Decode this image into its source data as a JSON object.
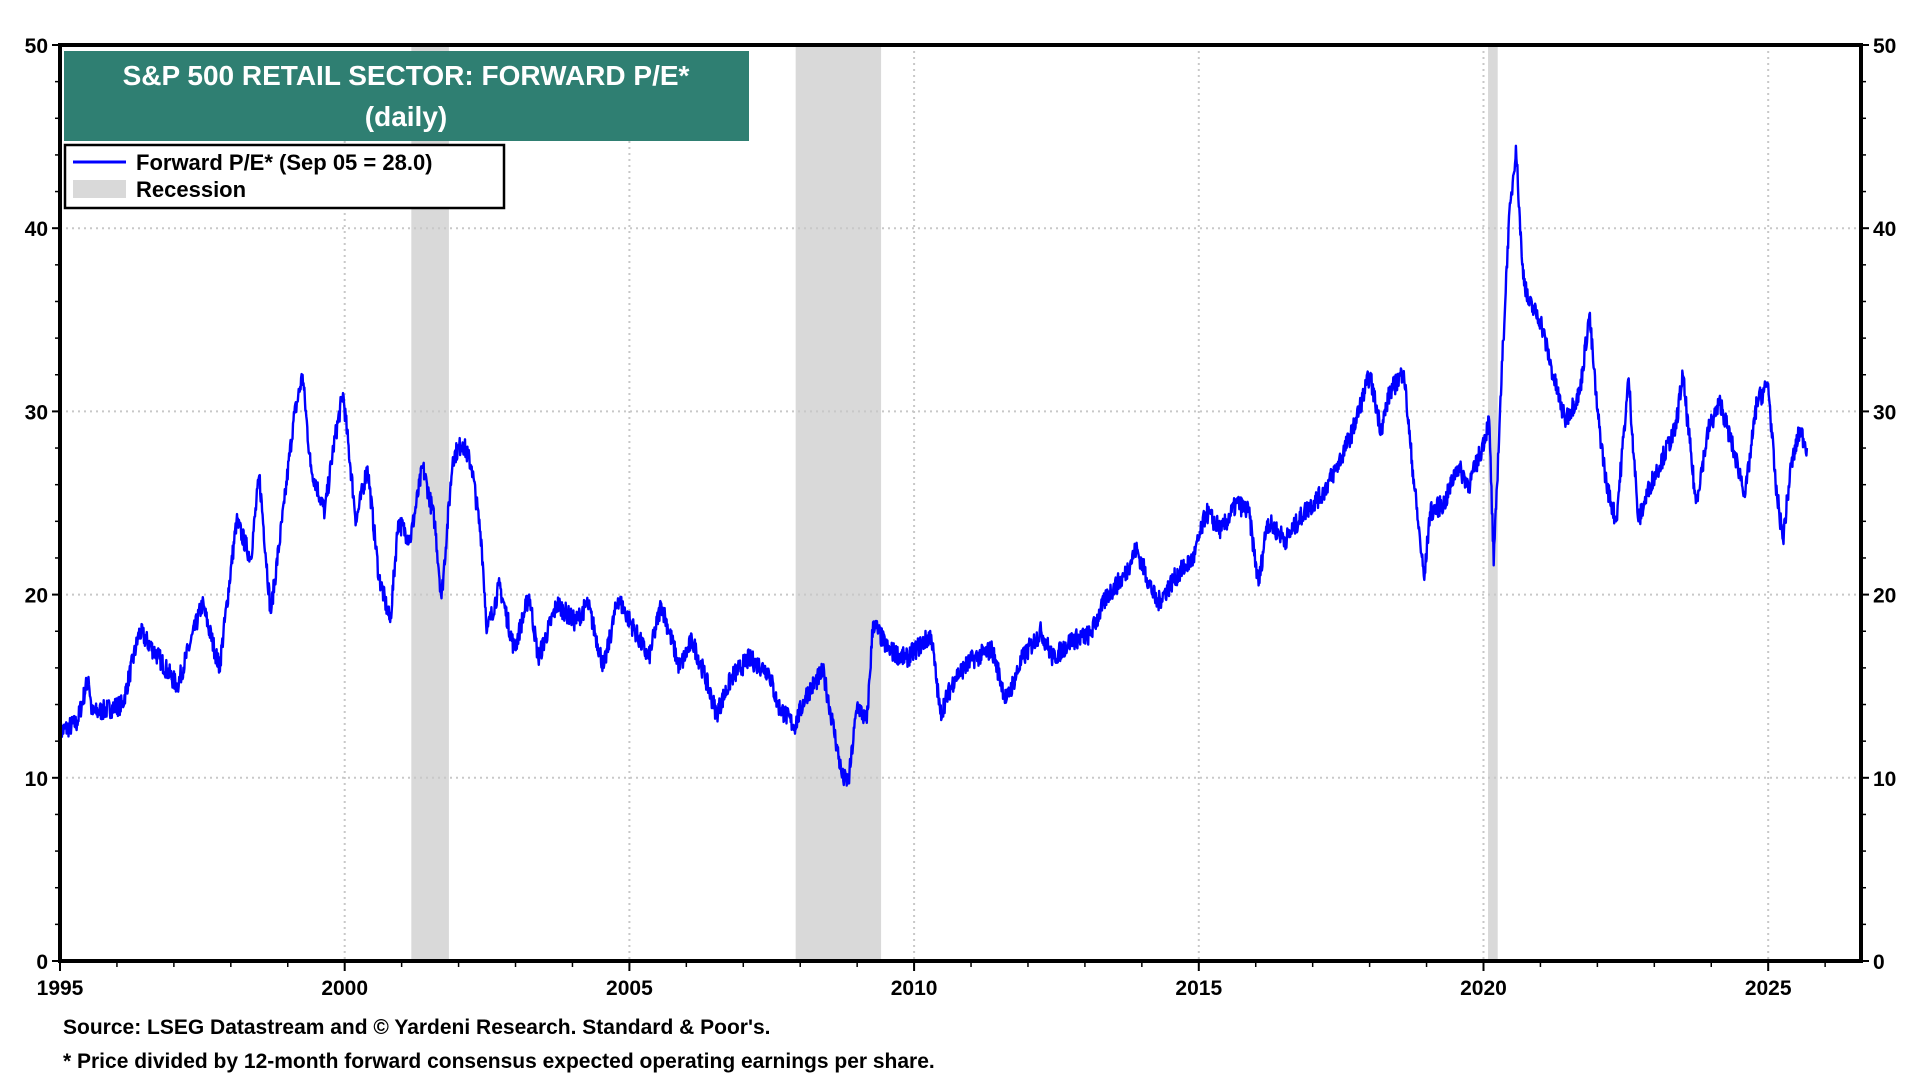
{
  "chart_data": {
    "type": "line",
    "title": "S&P 500 RETAIL SECTOR: FORWARD P/E*",
    "subtitle": "(daily)",
    "xlim": [
      1995,
      2026.63
    ],
    "ylim": [
      0,
      50
    ],
    "x_ticks": [
      "1995",
      "2000",
      "2005",
      "2010",
      "2015",
      "2020",
      "2025"
    ],
    "y_ticks": [
      "0",
      "10",
      "20",
      "30",
      "40",
      "50"
    ],
    "grid": true,
    "legend_placement": "top-left",
    "colors": {
      "series": "#0000ff",
      "recession": "#d9d9d9",
      "title_bg": "#2f7f72"
    },
    "legend": {
      "series_label": "Forward P/E* (Sep 05 = 28.0)",
      "recession_label": "Recession"
    },
    "recessions": [
      [
        2001.17,
        2001.83
      ],
      [
        2007.92,
        2009.42
      ],
      [
        2020.08,
        2020.25
      ]
    ],
    "series": [
      {
        "name": "Forward P/E*",
        "x": [
          1995.0,
          1995.3,
          1995.5,
          1995.56,
          1996.1,
          1996.4,
          1996.75,
          1997.06,
          1997.5,
          1997.8,
          1998.1,
          1998.35,
          1998.5,
          1998.7,
          1998.94,
          1999.1,
          1999.26,
          1999.4,
          1999.65,
          1999.8,
          1999.97,
          2000.2,
          2000.4,
          2000.6,
          2000.8,
          2000.94,
          2001.15,
          2001.37,
          2001.58,
          2001.7,
          2001.9,
          2002.07,
          2002.23,
          2002.4,
          2002.5,
          2002.72,
          2002.98,
          2003.24,
          2003.4,
          2003.73,
          2004.05,
          2004.27,
          2004.55,
          2004.8,
          2005.1,
          2005.34,
          2005.56,
          2005.88,
          2006.1,
          2006.3,
          2006.53,
          2006.8,
          2007.1,
          2007.45,
          2007.6,
          2007.9,
          2008.1,
          2008.4,
          2008.57,
          2008.74,
          2008.85,
          2009.0,
          2009.17,
          2009.28,
          2009.54,
          2009.86,
          2010.3,
          2010.46,
          2010.72,
          2011.04,
          2011.37,
          2011.62,
          2011.9,
          2012.23,
          2012.44,
          2012.76,
          2013.09,
          2013.4,
          2013.69,
          2013.9,
          2014.27,
          2014.6,
          2014.91,
          2015.13,
          2015.4,
          2015.67,
          2015.88,
          2016.05,
          2016.2,
          2016.53,
          2016.85,
          2017.17,
          2017.43,
          2017.71,
          2018.0,
          2018.2,
          2018.35,
          2018.6,
          2018.72,
          2018.85,
          2018.96,
          2019.06,
          2019.32,
          2019.54,
          2019.75,
          2019.97,
          2020.1,
          2020.18,
          2020.29,
          2020.44,
          2020.57,
          2020.68,
          2020.78,
          2021.0,
          2021.22,
          2021.43,
          2021.69,
          2021.86,
          2022.0,
          2022.16,
          2022.33,
          2022.55,
          2022.72,
          2022.93,
          2023.15,
          2023.37,
          2023.5,
          2023.73,
          2023.95,
          2024.16,
          2024.38,
          2024.6,
          2024.8,
          2025.0,
          2025.13,
          2025.26,
          2025.4,
          2025.56,
          2025.68
        ],
        "y": [
          12.5,
          13.0,
          15.5,
          13.5,
          14.0,
          18.0,
          16.5,
          15.0,
          19.5,
          16.0,
          24.0,
          22.0,
          26.5,
          19.0,
          25.0,
          29.5,
          32.0,
          27.0,
          24.5,
          28.0,
          31.0,
          24.0,
          27.0,
          21.0,
          18.5,
          24.0,
          23.0,
          27.0,
          24.0,
          19.8,
          27.5,
          28.3,
          27.0,
          23.0,
          18.0,
          20.5,
          17.0,
          20.0,
          16.5,
          19.5,
          18.5,
          19.5,
          16.0,
          19.8,
          18.0,
          16.5,
          19.5,
          16.0,
          17.5,
          15.8,
          13.5,
          15.5,
          16.5,
          15.8,
          14.0,
          12.8,
          14.5,
          15.8,
          13.0,
          10.0,
          9.8,
          14.0,
          13.0,
          18.5,
          17.0,
          16.5,
          17.8,
          13.5,
          15.5,
          16.5,
          17.0,
          14.2,
          16.5,
          18.0,
          16.5,
          17.5,
          17.8,
          20.0,
          21.0,
          22.5,
          19.5,
          21.0,
          22.0,
          24.5,
          23.5,
          25.0,
          24.5,
          20.5,
          24.0,
          23.0,
          24.5,
          25.5,
          27.0,
          29.0,
          32.0,
          29.0,
          31.0,
          32.2,
          28.0,
          24.0,
          20.8,
          24.5,
          25.0,
          27.0,
          26.0,
          28.0,
          29.5,
          21.6,
          30.0,
          40.0,
          44.5,
          38.0,
          36.0,
          35.0,
          32.0,
          29.5,
          31.0,
          35.3,
          30.0,
          26.0,
          24.0,
          31.8,
          24.0,
          26.0,
          27.5,
          29.0,
          32.0,
          25.0,
          29.0,
          30.5,
          28.0,
          25.5,
          30.5,
          31.5,
          26.0,
          23.0,
          27.0,
          29.0,
          28.0
        ]
      }
    ],
    "footnotes": [
      "Source: LSEG Datastream and © Yardeni Research. Standard & Poor's.",
      "* Price divided by 12-month forward consensus expected operating earnings per share."
    ]
  }
}
